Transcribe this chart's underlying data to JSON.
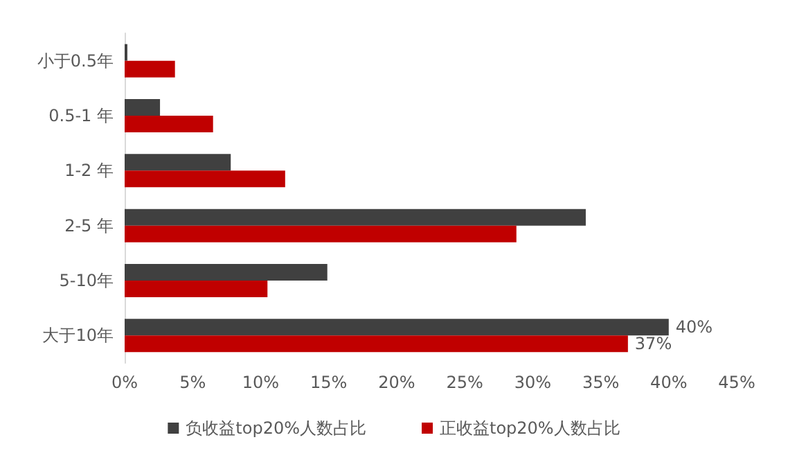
{
  "chart_data": {
    "type": "bar",
    "orientation": "horizontal",
    "categories": [
      "小于0.5年",
      "0.5-1 年",
      "1-2 年",
      "2-5 年",
      "5-10年",
      "大于10年"
    ],
    "series": [
      {
        "name": "负收益top20%人数占比",
        "color": "#404040",
        "values": [
          0.2,
          2.6,
          7.8,
          33.9,
          14.9,
          40
        ],
        "value_labels": [
          null,
          null,
          null,
          null,
          null,
          "40%"
        ]
      },
      {
        "name": "正收益top20%人数占比",
        "color": "#c00000",
        "values": [
          3.7,
          6.5,
          11.8,
          28.8,
          10.5,
          37
        ],
        "value_labels": [
          null,
          null,
          null,
          null,
          null,
          "37%"
        ]
      }
    ],
    "xlim": [
      0,
      45
    ],
    "xticks": [
      {
        "value": 0,
        "label": "0%"
      },
      {
        "value": 5,
        "label": "5%"
      },
      {
        "value": 10,
        "label": "10%"
      },
      {
        "value": 15,
        "label": "15%"
      },
      {
        "value": 20,
        "label": "20%"
      },
      {
        "value": 25,
        "label": "25%"
      },
      {
        "value": 30,
        "label": "30%"
      },
      {
        "value": 35,
        "label": "35%"
      },
      {
        "value": 40,
        "label": "40%"
      },
      {
        "value": 45,
        "label": "45%"
      }
    ],
    "grid": false,
    "legend": "bottom"
  }
}
